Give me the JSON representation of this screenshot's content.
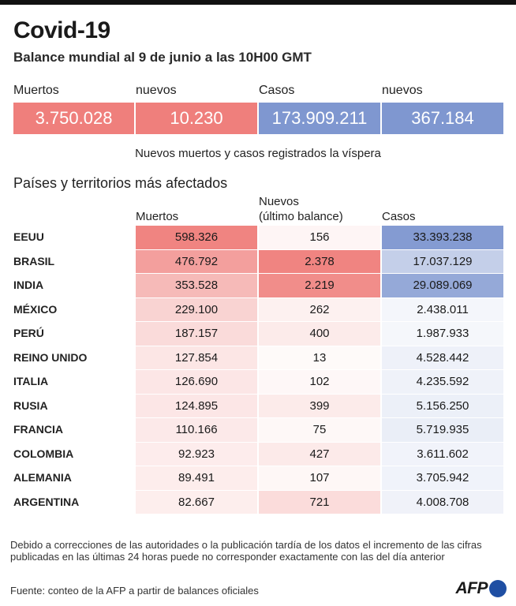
{
  "title": "Covid-19",
  "subtitle": "Balance mundial al 9 de junio a las 10H00 GMT",
  "summary": {
    "items": [
      {
        "label": "Muertos",
        "value": "3.750.028"
      },
      {
        "label": "nuevos",
        "value": "10.230"
      },
      {
        "label": "Casos",
        "value": "173.909.211"
      },
      {
        "label": "nuevos",
        "value": "367.184"
      }
    ],
    "note": "Nuevos muertos y casos registrados la víspera"
  },
  "colors": {
    "deaths": "#ef7f7c",
    "cases": "#7f97d0",
    "low": "#ffffff"
  },
  "chart_data": {
    "type": "table",
    "title": "Países y territorios más afectados",
    "columns": [
      "Muertos",
      "Nuevos (último balance)",
      "Casos"
    ],
    "column_header_lines": [
      [
        "Muertos"
      ],
      [
        "Nuevos",
        "(último balance)"
      ],
      [
        "Casos"
      ]
    ],
    "rows": [
      {
        "country": "EEUU",
        "deaths": 598326,
        "new": 156,
        "cases": 33393238
      },
      {
        "country": "BRASIL",
        "deaths": 476792,
        "new": 2378,
        "cases": 17037129
      },
      {
        "country": "INDIA",
        "deaths": 353528,
        "new": 2219,
        "cases": 29089069
      },
      {
        "country": "MÉXICO",
        "deaths": 229100,
        "new": 262,
        "cases": 2438011
      },
      {
        "country": "PERÚ",
        "deaths": 187157,
        "new": 400,
        "cases": 1987933
      },
      {
        "country": "REINO UNIDO",
        "deaths": 127854,
        "new": 13,
        "cases": 4528442
      },
      {
        "country": "ITALIA",
        "deaths": 126690,
        "new": 102,
        "cases": 4235592
      },
      {
        "country": "RUSIA",
        "deaths": 124895,
        "new": 399,
        "cases": 5156250
      },
      {
        "country": "FRANCIA",
        "deaths": 110166,
        "new": 75,
        "cases": 5719935
      },
      {
        "country": "COLOMBIA",
        "deaths": 92923,
        "new": 427,
        "cases": 3611602
      },
      {
        "country": "ALEMANIA",
        "deaths": 89491,
        "new": 107,
        "cases": 3705942
      },
      {
        "country": "ARGENTINA",
        "deaths": 82667,
        "new": 721,
        "cases": 4008708
      }
    ]
  },
  "footnote": "Debido a correcciones de las autoridades o la publicación tardía de los datos  el incremento de las cifras publicadas en las últimas 24 horas puede no corresponder exactamente con las del día anterior",
  "source": "Fuente: conteo de la AFP a partir de balances oficiales",
  "logo": {
    "text": "AFP",
    "icon": "afp-dot-icon"
  }
}
